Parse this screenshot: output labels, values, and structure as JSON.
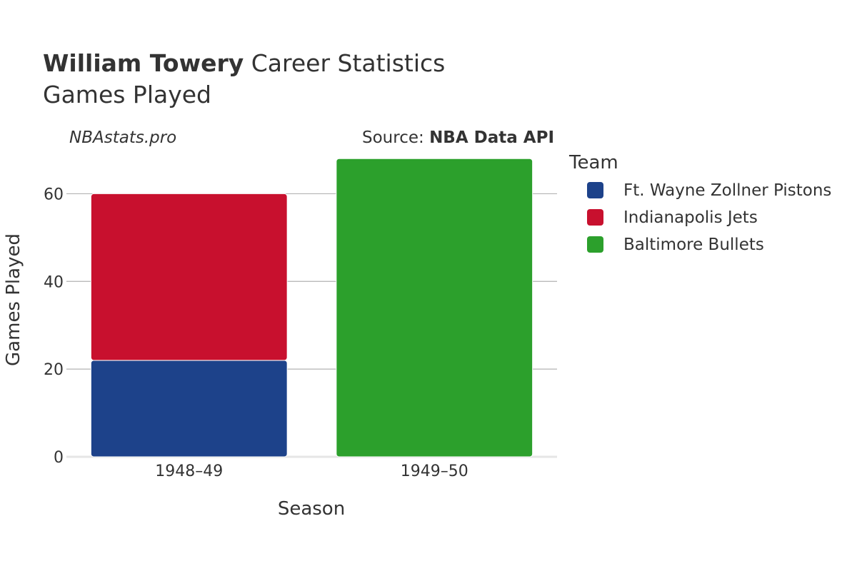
{
  "header": {
    "player_name": "William Towery",
    "title_suffix": " Career Statistics",
    "subtitle": "Games Played"
  },
  "credits": {
    "site": "NBAstats.pro",
    "source_prefix": "Source: ",
    "source_name": "NBA Data API"
  },
  "legend": {
    "title": "Team"
  },
  "chart_data": {
    "type": "bar",
    "stacked": true,
    "xlabel": "Season",
    "ylabel": "Games Played",
    "categories": [
      "1948–49",
      "1949–50"
    ],
    "ylim": [
      0,
      70
    ],
    "yticks": [
      0,
      20,
      40,
      60
    ],
    "grid": true,
    "legend_position": "right",
    "series": [
      {
        "name": "Ft. Wayne Zollner Pistons",
        "color": "#1d428a",
        "values": [
          22,
          0
        ]
      },
      {
        "name": "Indianapolis Jets",
        "color": "#c8102e",
        "values": [
          38,
          0
        ]
      },
      {
        "name": "Baltimore Bullets",
        "color": "#2ca02c",
        "values": [
          0,
          68
        ]
      }
    ]
  }
}
